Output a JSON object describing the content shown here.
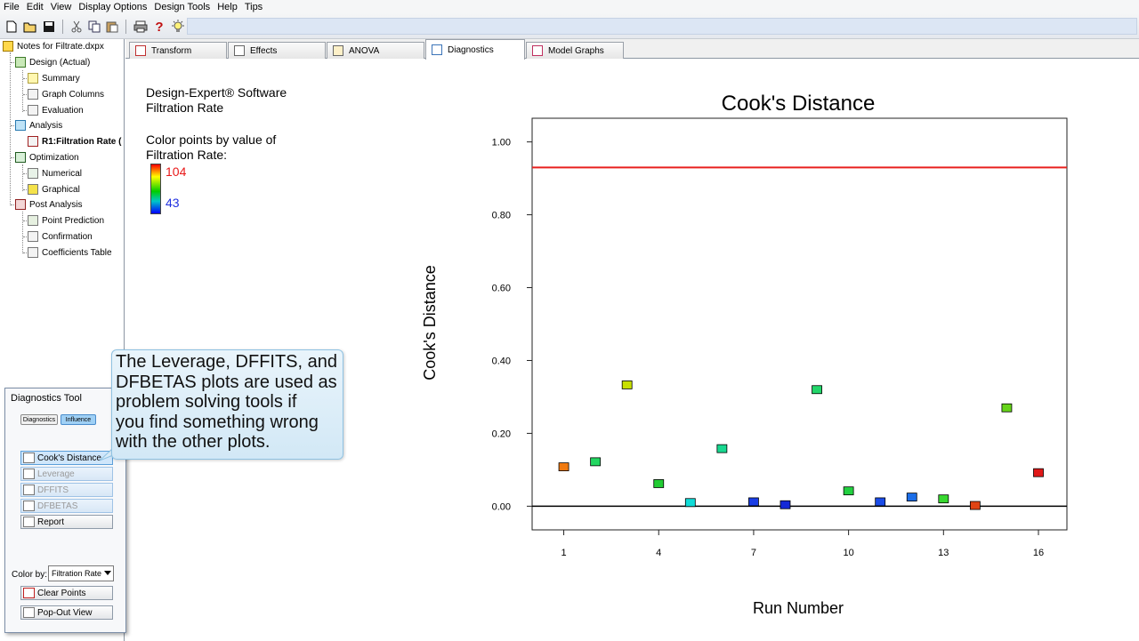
{
  "menu": [
    "File",
    "Edit",
    "View",
    "Display Options",
    "Design Tools",
    "Help",
    "Tips"
  ],
  "toolbar": {
    "icons": [
      "new-file-icon",
      "open-folder-icon",
      "save-icon",
      "cut-icon",
      "copy-icon",
      "paste-icon",
      "print-icon",
      "help-icon",
      "tips-lightbulb-icon"
    ]
  },
  "tree": {
    "root": "Notes for Filtrate.dxpx",
    "design": "Design (Actual)",
    "summary": "Summary",
    "graph_columns": "Graph Columns",
    "evaluation": "Evaluation",
    "analysis": "Analysis",
    "r1": "R1:Filtration Rate (",
    "optimization": "Optimization",
    "numerical": "Numerical",
    "graphical": "Graphical",
    "post_analysis": "Post Analysis",
    "point_prediction": "Point Prediction",
    "confirmation": "Confirmation",
    "coefficients_table": "Coefficients Table"
  },
  "tabs": [
    "Transform",
    "Effects",
    "ANOVA",
    "Diagnostics",
    "Model Graphs"
  ],
  "active_tab": "Diagnostics",
  "info": {
    "line1": "Design-Expert® Software",
    "line2": "Filtration Rate",
    "color_line1": "Color points by value of",
    "color_line2": "Filtration Rate:",
    "max": "104",
    "min": "43"
  },
  "diag_tool": {
    "title": "Diagnostics Tool",
    "tab_diagnostics": "Diagnostics",
    "tab_influence": "Influence",
    "cooks": "Cook's Distance",
    "leverage": "Leverage",
    "dffits": "DFFITS",
    "dfbetas": "DFBETAS",
    "report": "Report",
    "color_by_label": "Color by:",
    "color_by_value": "Filtration Rate",
    "clear_points": "Clear Points",
    "pop_out": "Pop-Out View"
  },
  "callout": {
    "lines": [
      "The Leverage, DFFITS, and",
      "DFBETAS plots are used as",
      "problem solving tools if",
      "you find something wrong",
      "with the other plots."
    ]
  },
  "chart_data": {
    "type": "scatter",
    "title": "Cook's Distance",
    "xlabel": "Run Number",
    "ylabel": "Cook's Distance",
    "xlim": [
      0.0,
      16.9
    ],
    "ylim": [
      -0.065,
      1.065
    ],
    "x_ticks": [
      1,
      4,
      7,
      10,
      13,
      16
    ],
    "y_ticks": [
      0.0,
      0.2,
      0.4,
      0.6,
      0.8,
      1.0
    ],
    "y_tick_labels": [
      "0.00",
      "0.20",
      "0.40",
      "0.60",
      "0.80",
      "1.00"
    ],
    "reference_lines": [
      {
        "y": 0.93,
        "color": "#e8201e"
      },
      {
        "y": 0.0,
        "color": "#000000"
      }
    ],
    "points": [
      {
        "x": 1,
        "y": 0.108,
        "color": "#f07a10"
      },
      {
        "x": 2,
        "y": 0.122,
        "color": "#22d660"
      },
      {
        "x": 3,
        "y": 0.333,
        "color": "#c8e000"
      },
      {
        "x": 4,
        "y": 0.062,
        "color": "#22cc33"
      },
      {
        "x": 5,
        "y": 0.01,
        "color": "#10dcd8"
      },
      {
        "x": 6,
        "y": 0.158,
        "color": "#18d890"
      },
      {
        "x": 7,
        "y": 0.012,
        "color": "#1a3ee6"
      },
      {
        "x": 8,
        "y": 0.004,
        "color": "#1428d8"
      },
      {
        "x": 9,
        "y": 0.32,
        "color": "#22d66a"
      },
      {
        "x": 10,
        "y": 0.042,
        "color": "#22d040"
      },
      {
        "x": 11,
        "y": 0.012,
        "color": "#1a4ce8"
      },
      {
        "x": 12,
        "y": 0.025,
        "color": "#1c6ee8"
      },
      {
        "x": 13,
        "y": 0.02,
        "color": "#38d830"
      },
      {
        "x": 14,
        "y": 0.002,
        "color": "#e04414"
      },
      {
        "x": 15,
        "y": 0.27,
        "color": "#66d41a"
      },
      {
        "x": 16,
        "y": 0.092,
        "color": "#e01818"
      }
    ]
  }
}
